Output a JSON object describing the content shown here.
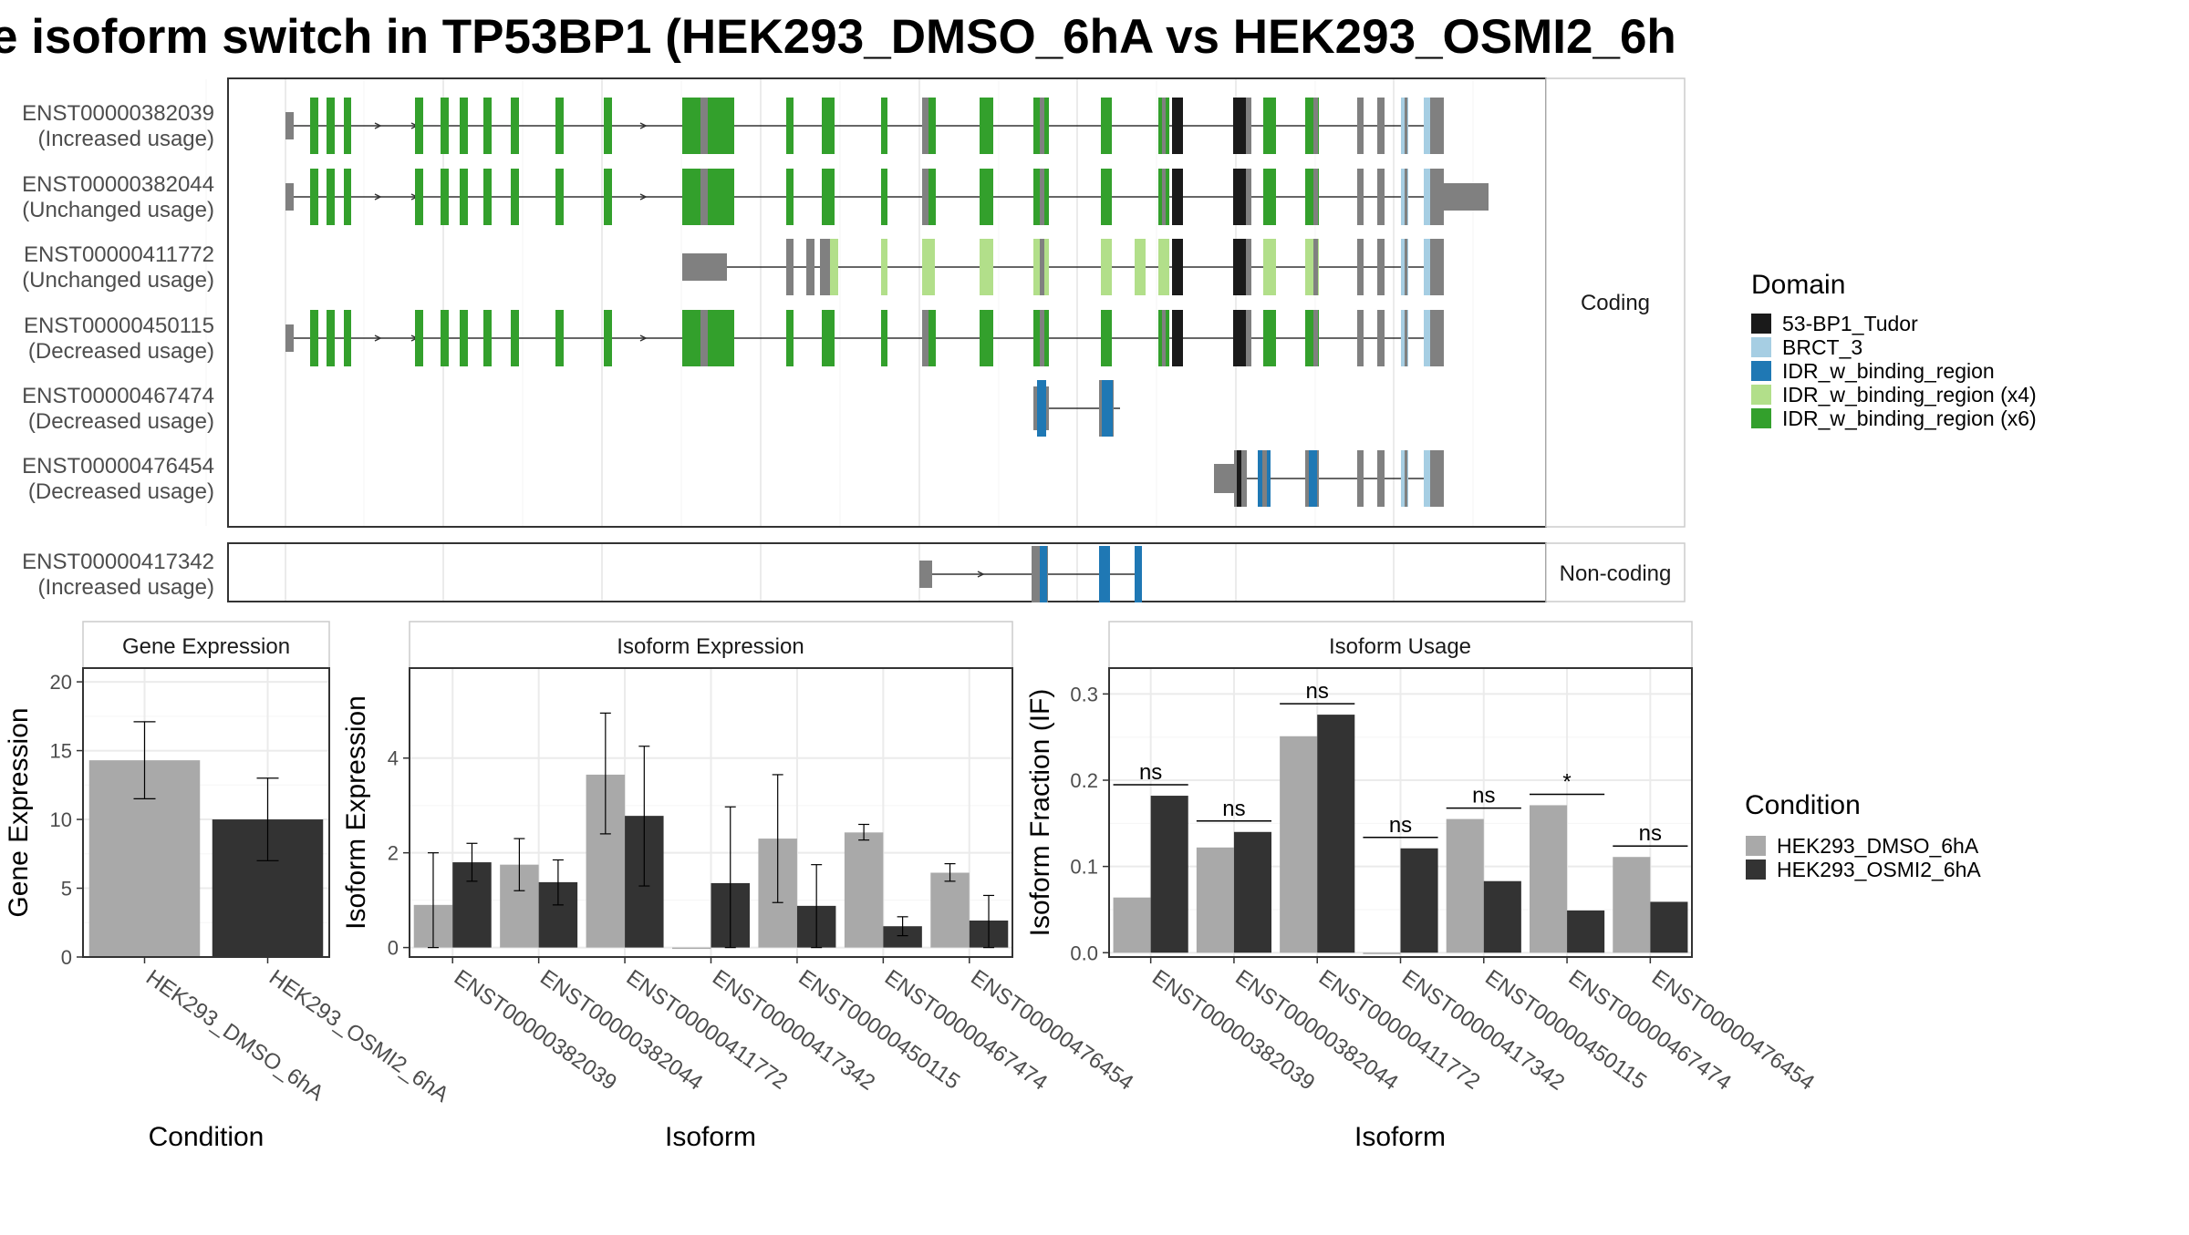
{
  "title": "e isoform switch in TP53BP1 (HEK293_DMSO_6hA vs HEK293_OSMI2_6h",
  "colors": {
    "domain_tudor": "#1a1a1a",
    "domain_brct3": "#a6cee3",
    "domain_idr": "#1f78b4",
    "domain_idr_x4": "#b2df8a",
    "domain_idr_x6": "#33a02c",
    "exon_default": "#808080",
    "cond_dmso": "#a9a9a9",
    "cond_osmi2": "#333333"
  },
  "structure": {
    "coding_label": "Coding",
    "noncoding_label": "Non-coding",
    "transcripts": [
      {
        "id": "ENST00000382039",
        "usage": "(Increased usage)",
        "group": "coding"
      },
      {
        "id": "ENST00000382044",
        "usage": "(Unchanged usage)",
        "group": "coding"
      },
      {
        "id": "ENST00000411772",
        "usage": "(Unchanged usage)",
        "group": "coding"
      },
      {
        "id": "ENST00000450115",
        "usage": "(Decreased usage)",
        "group": "coding"
      },
      {
        "id": "ENST00000467474",
        "usage": "(Decreased usage)",
        "group": "coding"
      },
      {
        "id": "ENST00000476454",
        "usage": "(Decreased usage)",
        "group": "coding"
      },
      {
        "id": "ENST00000417342",
        "usage": "(Increased usage)",
        "group": "noncoding"
      }
    ]
  },
  "legend_domain": {
    "title": "Domain",
    "items": [
      {
        "label": "53-BP1_Tudor",
        "color": "#1a1a1a"
      },
      {
        "label": "BRCT_3",
        "color": "#a6cee3"
      },
      {
        "label": "IDR_w_binding_region",
        "color": "#1f78b4"
      },
      {
        "label": "IDR_w_binding_region (x4)",
        "color": "#b2df8a"
      },
      {
        "label": "IDR_w_binding_region (x6)",
        "color": "#33a02c"
      }
    ]
  },
  "legend_condition": {
    "title": "Condition",
    "items": [
      {
        "label": "HEK293_DMSO_6hA",
        "color": "#a9a9a9"
      },
      {
        "label": "HEK293_OSMI2_6hA",
        "color": "#333333"
      }
    ]
  },
  "chart_data": [
    {
      "type": "bar",
      "title": "Gene Expression",
      "xlabel": "Condition",
      "ylabel": "Gene Expression",
      "ylim": [
        0,
        21
      ],
      "yticks": [
        0,
        5,
        10,
        15,
        20
      ],
      "categories": [
        "HEK293_DMSO_6hA",
        "HEK293_OSMI2_6hA"
      ],
      "values": [
        14.3,
        10.0
      ],
      "err_low": [
        11.5,
        7.0
      ],
      "err_high": [
        17.1,
        13.0
      ]
    },
    {
      "type": "bar",
      "title": "Isoform Expression",
      "xlabel": "Isoform",
      "ylabel": "Isoform Expression",
      "ylim": [
        -0.2,
        5.9
      ],
      "yticks": [
        0,
        2,
        4
      ],
      "categories": [
        "ENST00000382039",
        "ENST00000382044",
        "ENST00000411772",
        "ENST00000417342",
        "ENST00000450115",
        "ENST00000467474",
        "ENST00000476454"
      ],
      "series": [
        {
          "name": "HEK293_DMSO_6hA",
          "values": [
            0.9,
            1.75,
            3.65,
            0.0,
            2.3,
            2.43,
            1.58
          ],
          "err_low": [
            0.0,
            1.2,
            2.4,
            0.0,
            0.95,
            2.27,
            1.4
          ],
          "err_high": [
            2.0,
            2.3,
            4.95,
            0.0,
            3.65,
            2.6,
            1.77
          ]
        },
        {
          "name": "HEK293_OSMI2_6hA",
          "values": [
            1.8,
            1.38,
            2.78,
            1.36,
            0.88,
            0.45,
            0.57
          ],
          "err_low": [
            1.4,
            0.9,
            1.3,
            0.0,
            0.0,
            0.25,
            0.0
          ],
          "err_high": [
            2.2,
            1.85,
            4.25,
            2.97,
            1.75,
            0.65,
            1.1
          ]
        }
      ]
    },
    {
      "type": "bar",
      "title": "Isoform Usage",
      "xlabel": "Isoform",
      "ylabel": "Isoform Fraction (IF)",
      "ylim": [
        -0.005,
        0.33
      ],
      "yticks": [
        0.0,
        0.1,
        0.2,
        0.3
      ],
      "yticklabels": [
        "0.0",
        "0.1",
        "0.2",
        "0.3"
      ],
      "categories": [
        "ENST00000382039",
        "ENST00000382044",
        "ENST00000411772",
        "ENST00000417342",
        "ENST00000450115",
        "ENST00000467474",
        "ENST00000476454"
      ],
      "series": [
        {
          "name": "HEK293_DMSO_6hA",
          "values": [
            0.064,
            0.122,
            0.251,
            0.0,
            0.155,
            0.171,
            0.111
          ]
        },
        {
          "name": "HEK293_OSMI2_6hA",
          "values": [
            0.182,
            0.14,
            0.276,
            0.121,
            0.083,
            0.049,
            0.059
          ]
        }
      ],
      "significance": [
        "ns",
        "ns",
        "ns",
        "ns",
        "ns",
        "*",
        "ns"
      ]
    }
  ]
}
